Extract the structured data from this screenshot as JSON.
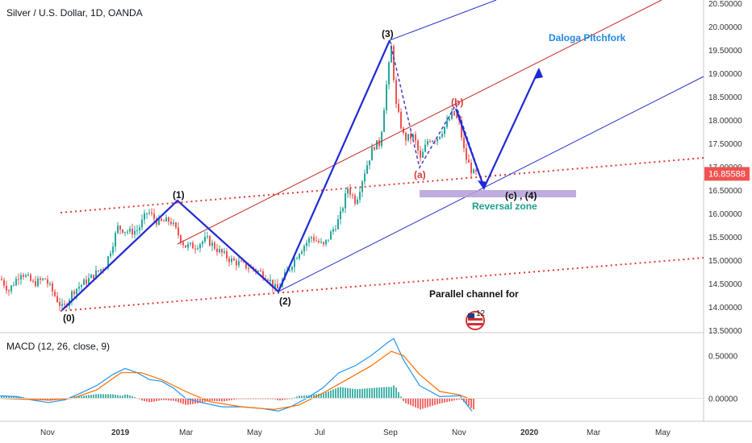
{
  "chart_data": {
    "type": "candlestick",
    "title": "Silver / U.S. Dollar, 1D, OANDA",
    "price_axis": {
      "ticks": [
        "20.50000",
        "20.00000",
        "19.50000",
        "19.00000",
        "18.50000",
        "18.00000",
        "17.50000",
        "17.00000",
        "16.50000",
        "16.00000",
        "15.50000",
        "15.00000",
        "14.50000",
        "14.00000",
        "13.50000"
      ],
      "ylim": [
        13.5,
        20.5
      ],
      "last_price": "16.85588",
      "last_price_value": 16.85588
    },
    "time_axis": {
      "labels": [
        "Nov",
        "2019",
        "Mar",
        "May",
        "Jul",
        "Sep",
        "Nov",
        "2020",
        "Mar",
        "May"
      ]
    },
    "macd_panel": {
      "title": "MACD (12, 26, close, 9)",
      "ticks": [
        "0.50000",
        "0.00000"
      ],
      "ylim": [
        -0.25,
        0.75
      ]
    },
    "price_path": [
      [
        0,
        14.6
      ],
      [
        10,
        14.35
      ],
      [
        25,
        14.75
      ],
      [
        40,
        14.5
      ],
      [
        55,
        14.6
      ],
      [
        70,
        14.15
      ],
      [
        77,
        13.95
      ],
      [
        90,
        14.35
      ],
      [
        110,
        14.6
      ],
      [
        130,
        14.9
      ],
      [
        145,
        15.7
      ],
      [
        160,
        15.6
      ],
      [
        170,
        15.65
      ],
      [
        182,
        16.05
      ],
      [
        195,
        15.8
      ],
      [
        210,
        15.85
      ],
      [
        220,
        15.55
      ],
      [
        228,
        15.3
      ],
      [
        240,
        15.3
      ],
      [
        255,
        15.45
      ],
      [
        270,
        15.2
      ],
      [
        285,
        15.0
      ],
      [
        300,
        14.9
      ],
      [
        315,
        14.8
      ],
      [
        330,
        14.65
      ],
      [
        342,
        14.35
      ],
      [
        355,
        14.75
      ],
      [
        370,
        15.2
      ],
      [
        385,
        15.5
      ],
      [
        400,
        15.3
      ],
      [
        410,
        15.6
      ],
      [
        420,
        15.9
      ],
      [
        430,
        16.55
      ],
      [
        440,
        16.25
      ],
      [
        450,
        16.85
      ],
      [
        462,
        17.45
      ],
      [
        470,
        17.5
      ],
      [
        478,
        18.75
      ],
      [
        484,
        19.55
      ],
      [
        490,
        18.3
      ],
      [
        500,
        17.6
      ],
      [
        512,
        17.65
      ],
      [
        520,
        17.15
      ],
      [
        530,
        17.6
      ],
      [
        540,
        17.6
      ],
      [
        552,
        17.9
      ],
      [
        560,
        18.15
      ],
      [
        568,
        17.95
      ],
      [
        575,
        17.25
      ],
      [
        585,
        16.85
      ],
      [
        592,
        16.85
      ]
    ],
    "macd_path": [
      [
        0,
        0.03
      ],
      [
        20,
        0.02
      ],
      [
        40,
        -0.02
      ],
      [
        60,
        -0.05
      ],
      [
        80,
        -0.02
      ],
      [
        100,
        0.06
      ],
      [
        120,
        0.15
      ],
      [
        140,
        0.28
      ],
      [
        155,
        0.35
      ],
      [
        170,
        0.3
      ],
      [
        185,
        0.22
      ],
      [
        200,
        0.2
      ],
      [
        215,
        0.12
      ],
      [
        230,
        0.0
      ],
      [
        250,
        -0.05
      ],
      [
        275,
        -0.1
      ],
      [
        300,
        -0.1
      ],
      [
        325,
        -0.12
      ],
      [
        345,
        -0.15
      ],
      [
        360,
        -0.1
      ],
      [
        380,
        0.0
      ],
      [
        400,
        0.12
      ],
      [
        420,
        0.3
      ],
      [
        440,
        0.38
      ],
      [
        460,
        0.5
      ],
      [
        480,
        0.65
      ],
      [
        488,
        0.7
      ],
      [
        500,
        0.45
      ],
      [
        520,
        0.15
      ],
      [
        545,
        0.02
      ],
      [
        570,
        0.03
      ],
      [
        585,
        -0.15
      ]
    ],
    "signal_path": [
      [
        0,
        0.0
      ],
      [
        30,
        -0.01
      ],
      [
        60,
        -0.02
      ],
      [
        90,
        0.0
      ],
      [
        120,
        0.1
      ],
      [
        150,
        0.3
      ],
      [
        175,
        0.3
      ],
      [
        200,
        0.22
      ],
      [
        230,
        0.08
      ],
      [
        260,
        -0.04
      ],
      [
        300,
        -0.1
      ],
      [
        340,
        -0.13
      ],
      [
        370,
        -0.08
      ],
      [
        400,
        0.06
      ],
      [
        430,
        0.22
      ],
      [
        460,
        0.38
      ],
      [
        485,
        0.55
      ],
      [
        500,
        0.5
      ],
      [
        520,
        0.28
      ],
      [
        545,
        0.08
      ],
      [
        570,
        0.04
      ],
      [
        585,
        -0.02
      ]
    ],
    "wave_labels": [
      "(0)",
      "(1)",
      "(2)",
      "(3)",
      "(a)",
      "(b)",
      "(c) , (4)"
    ],
    "annotations": {
      "pitchfork": "Daloga Pitchfork",
      "reversal": "Reversal zone",
      "channel": "Parallel channel for",
      "badge": "12"
    },
    "colors": {
      "up": "#26a69a",
      "down": "#ef5350",
      "impulse": "#1f2ad6",
      "median": "#c62828",
      "channel": "#e53935",
      "pitchfork_text": "#1e88e5",
      "reversal_text": "#1aa08a",
      "reversal_box": "#b39ddb",
      "macd": "#2196f3",
      "signal": "#ff6d00",
      "price_tag": "#ef5350"
    }
  }
}
